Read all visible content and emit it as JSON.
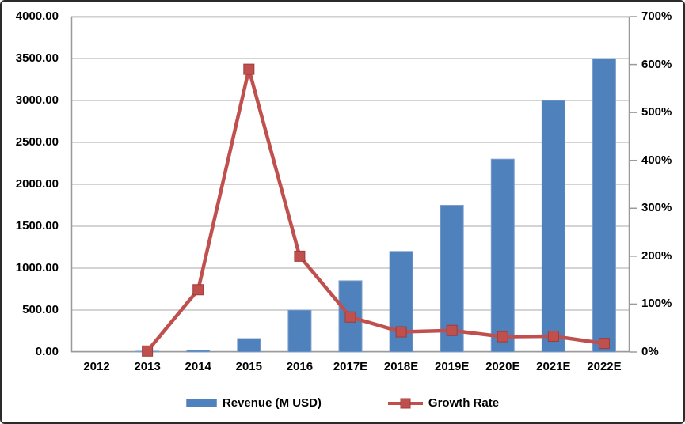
{
  "chart_data": {
    "type": "combo-bar-line",
    "title": "",
    "categories": [
      "2012",
      "2013",
      "2014",
      "2015",
      "2016",
      "2017E",
      "2018E",
      "2019E",
      "2020E",
      "2021E",
      "2022E"
    ],
    "series": [
      {
        "name": "Revenue (M USD)",
        "type": "bar",
        "axis": "left",
        "color": "#4F81BD",
        "values": [
          0,
          10,
          20,
          160,
          500,
          850,
          1200,
          1750,
          2300,
          3000,
          3500
        ]
      },
      {
        "name": "Growth Rate",
        "type": "line",
        "axis": "right",
        "unit": "%",
        "color": "#C0504D",
        "values": [
          null,
          2,
          130,
          590,
          200,
          73,
          42,
          45,
          32,
          33,
          18
        ]
      }
    ],
    "left_axis": {
      "min": 0,
      "max": 4000,
      "step": 500,
      "tick_labels": [
        "4000.00",
        "3500.00",
        "3000.00",
        "2500.00",
        "2000.00",
        "1500.00",
        "1000.00",
        "500.00",
        "0.00"
      ]
    },
    "right_axis": {
      "min": 0,
      "max": 700,
      "step": 100,
      "tick_labels": [
        "700%",
        "600%",
        "500%",
        "400%",
        "300%",
        "200%",
        "100%",
        "0%"
      ]
    },
    "legend": {
      "position": "bottom",
      "entries": [
        "Revenue (M USD)",
        "Growth Rate"
      ]
    },
    "grid": "horizontal",
    "colors": {
      "gridline": "#A8A8A8",
      "plot_border": "#9A9A9A",
      "axis_text": "#000000"
    }
  }
}
